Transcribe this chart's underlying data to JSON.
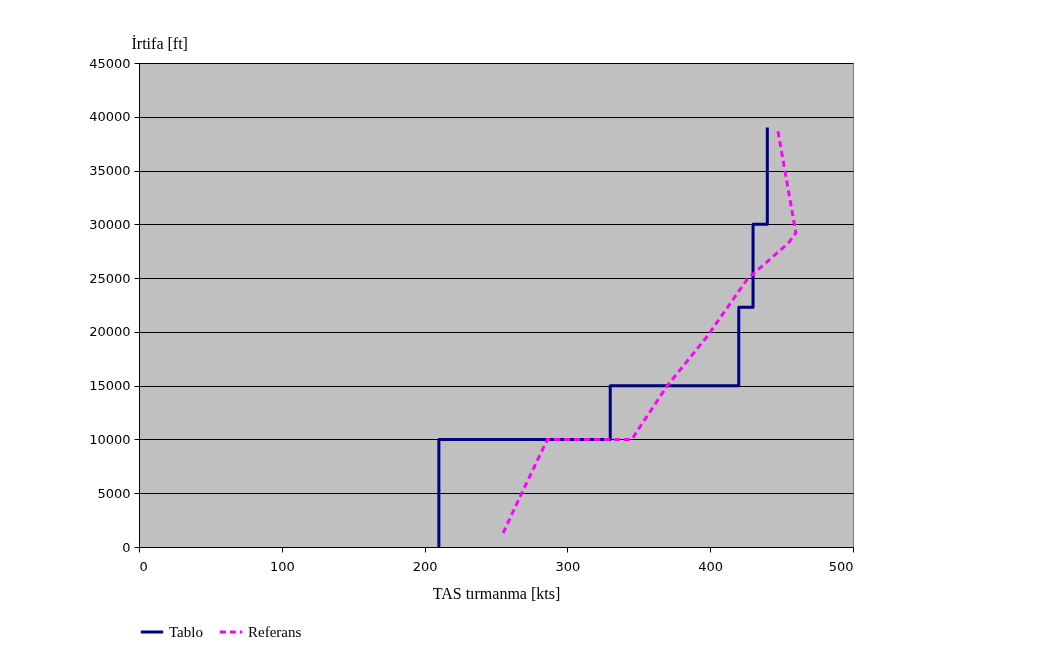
{
  "chart_data": {
    "type": "line",
    "xlabel": "TAS tırmanma [kts]",
    "ylabel": "İrtifa [ft]",
    "xlim": [
      0,
      500
    ],
    "xticks": [
      0,
      100,
      200,
      300,
      400,
      500
    ],
    "ylim": [
      0,
      45000
    ],
    "yticks": [
      0,
      5000,
      10000,
      15000,
      20000,
      25000,
      30000,
      35000,
      40000,
      45000
    ],
    "grid": "y",
    "legend": "bottom",
    "marker": "none",
    "series": [
      {
        "name": "Tablo",
        "color": "#000080",
        "line_style": "solid",
        "x": [
          210,
          210,
          330,
          330,
          420,
          420,
          430,
          430,
          440,
          440
        ],
        "values": [
          0,
          10000,
          10000,
          15000,
          15000,
          22300,
          22300,
          30000,
          30000,
          39000
        ]
      },
      {
        "name": "Referans",
        "color": "#ff00ff",
        "line_style": "dashed",
        "x": [
          255,
          268,
          286,
          345,
          370,
          398,
          426,
          455,
          460,
          447
        ],
        "values": [
          1300,
          5000,
          10000,
          10000,
          15000,
          19600,
          24900,
          28300,
          29200,
          39000
        ]
      }
    ]
  }
}
